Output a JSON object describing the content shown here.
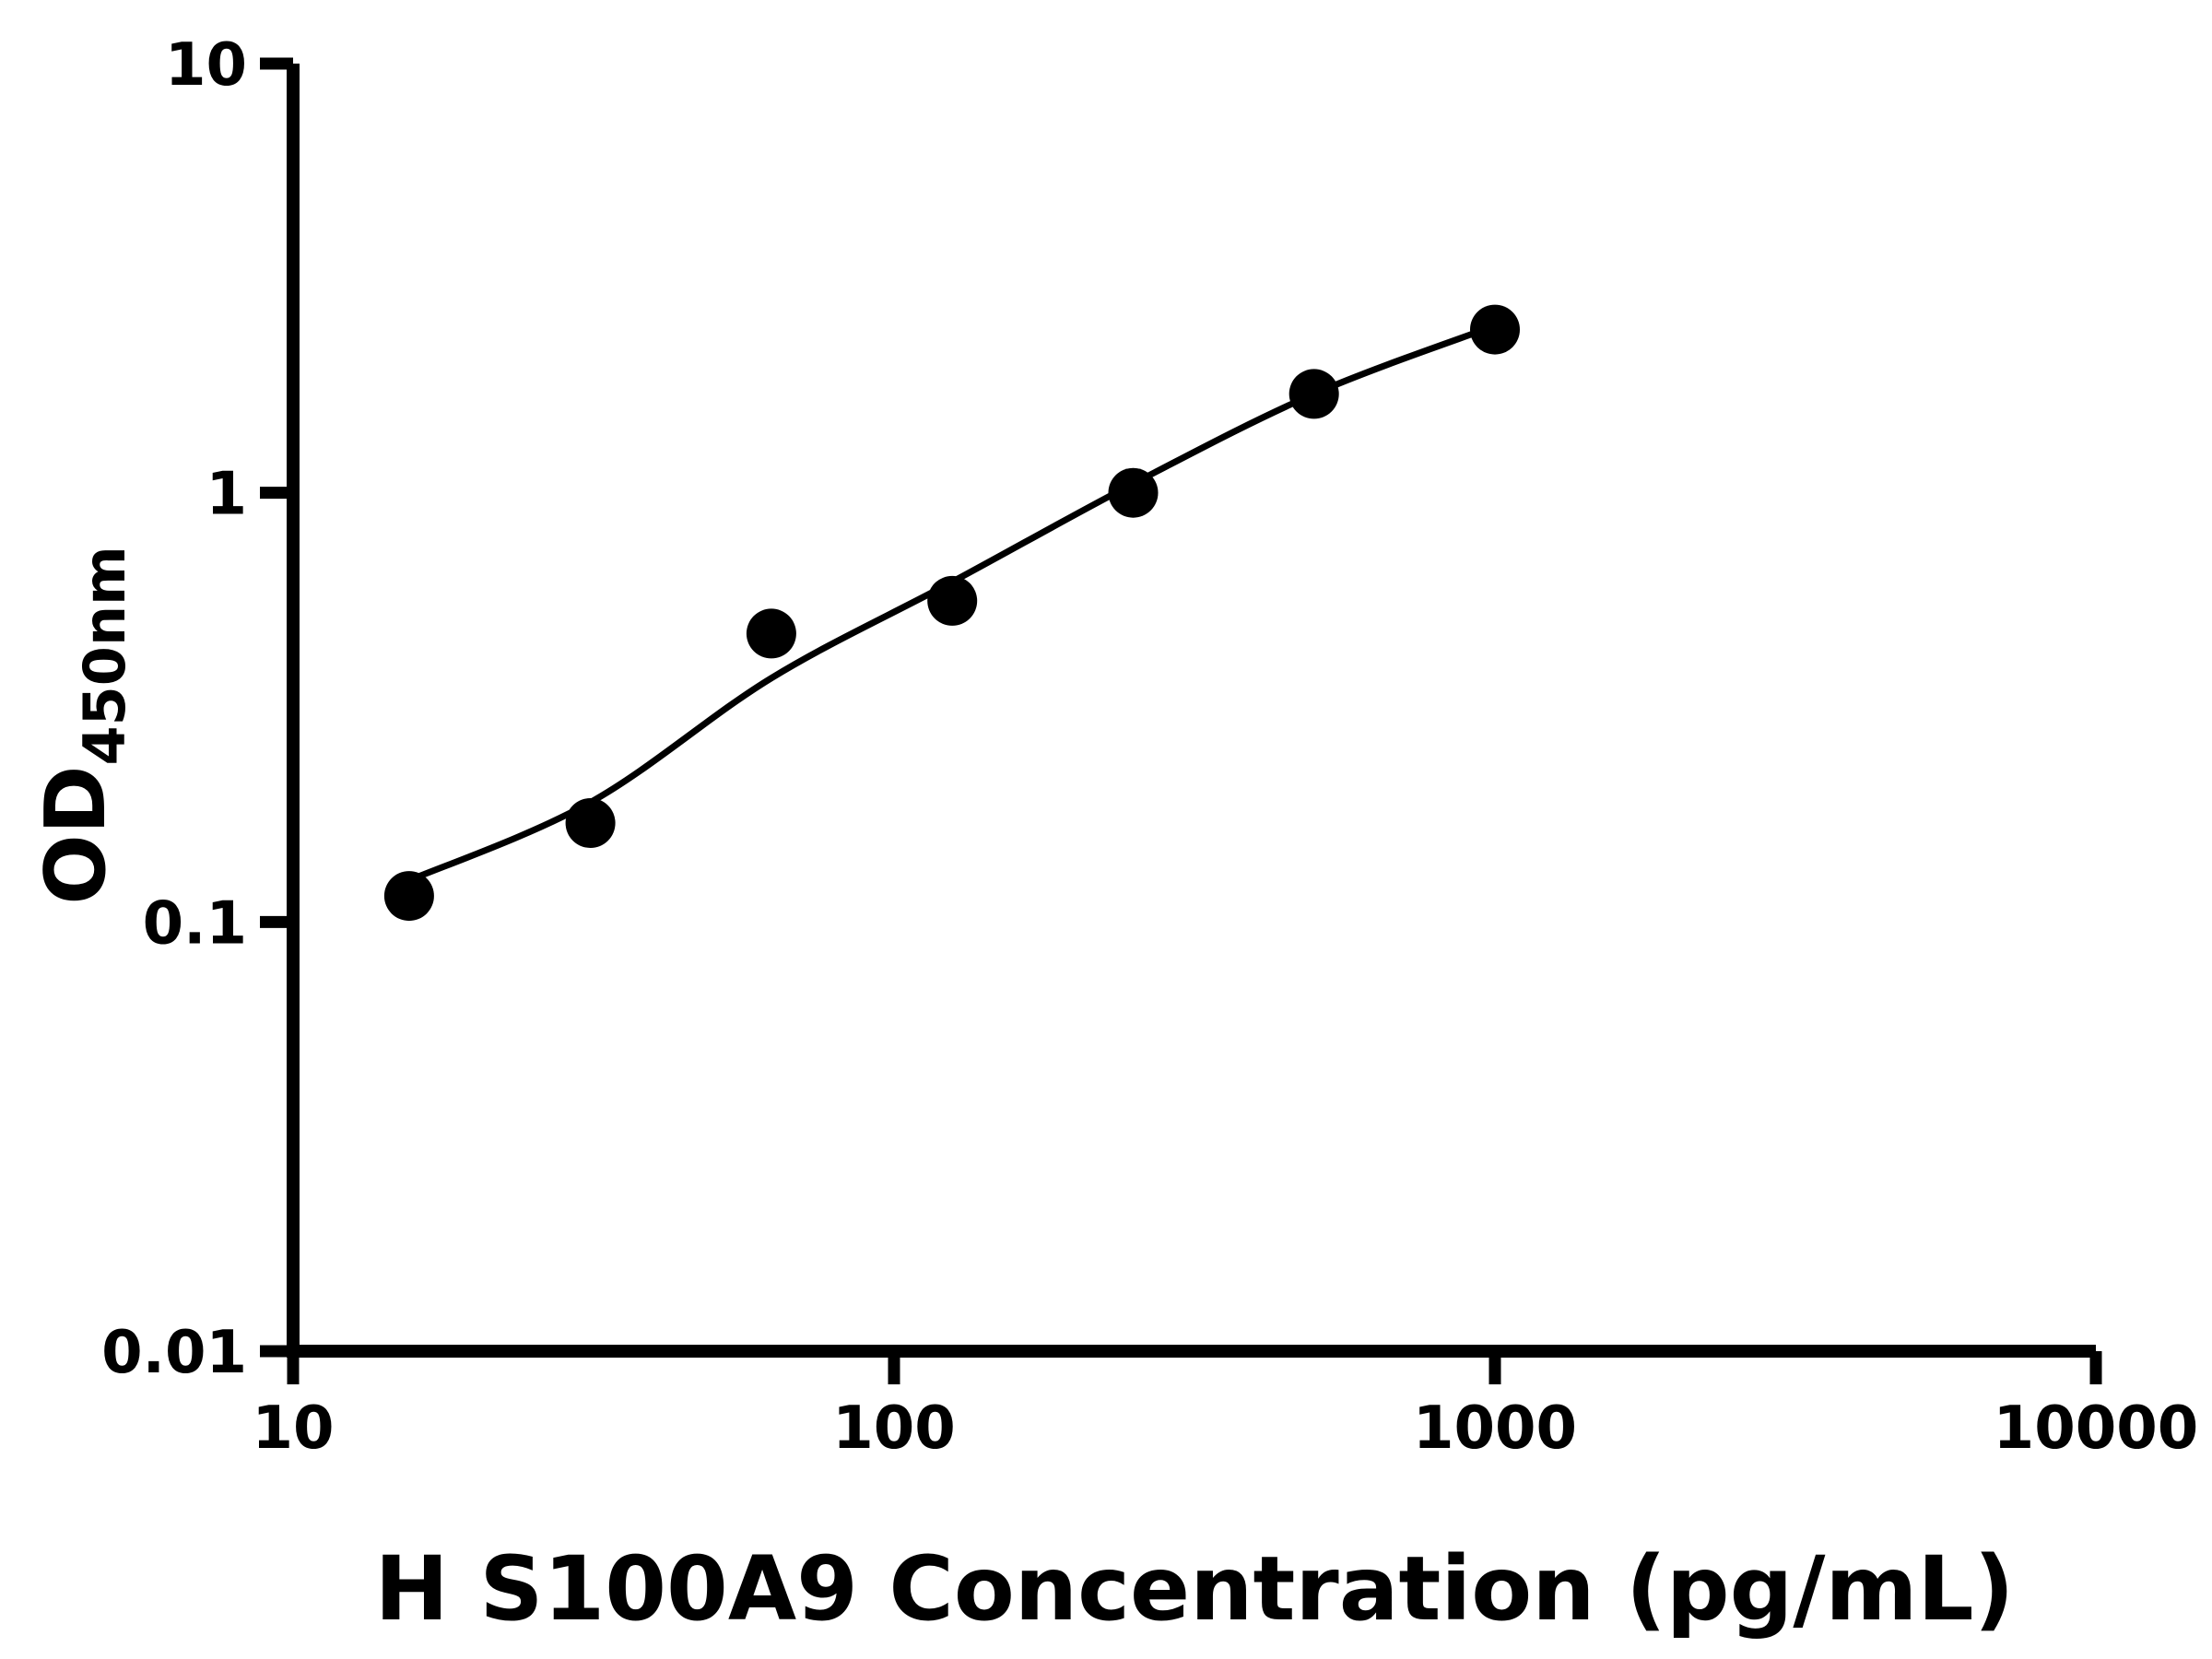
{
  "chart_data": {
    "type": "scatter",
    "title": "",
    "xlabel": "H S100A9 Concentration (pg/mL)",
    "ylabel": "OD",
    "ylabel_subscript": "450nm",
    "x_scale": "log10",
    "y_scale": "log10",
    "xlim": [
      10,
      10000
    ],
    "ylim": [
      0.01,
      10
    ],
    "x_ticks": [
      10,
      100,
      1000,
      10000
    ],
    "x_tick_labels": [
      "10",
      "100",
      "1000",
      "10000"
    ],
    "y_ticks": [
      0.01,
      0.1,
      1,
      10
    ],
    "y_tick_labels": [
      "0.01",
      "0.1",
      "1",
      "10"
    ],
    "grid": false,
    "legend": false,
    "series": [
      {
        "name": "fit-curve",
        "kind": "line",
        "x": [
          15.6,
          31.25,
          62.5,
          125,
          250,
          500,
          1000
        ],
        "y": [
          0.125,
          0.19,
          0.37,
          0.62,
          1.05,
          1.7,
          2.45
        ],
        "color": "#000000"
      },
      {
        "name": "standard-points",
        "kind": "scatter",
        "marker": "circle",
        "x": [
          15.6,
          31.25,
          62.5,
          125,
          250,
          500,
          1000
        ],
        "y": [
          0.115,
          0.17,
          0.47,
          0.56,
          1.0,
          1.7,
          2.4
        ],
        "color": "#000000"
      }
    ],
    "colors": {
      "axis": "#000000",
      "background": "#ffffff",
      "marker": "#000000"
    }
  }
}
